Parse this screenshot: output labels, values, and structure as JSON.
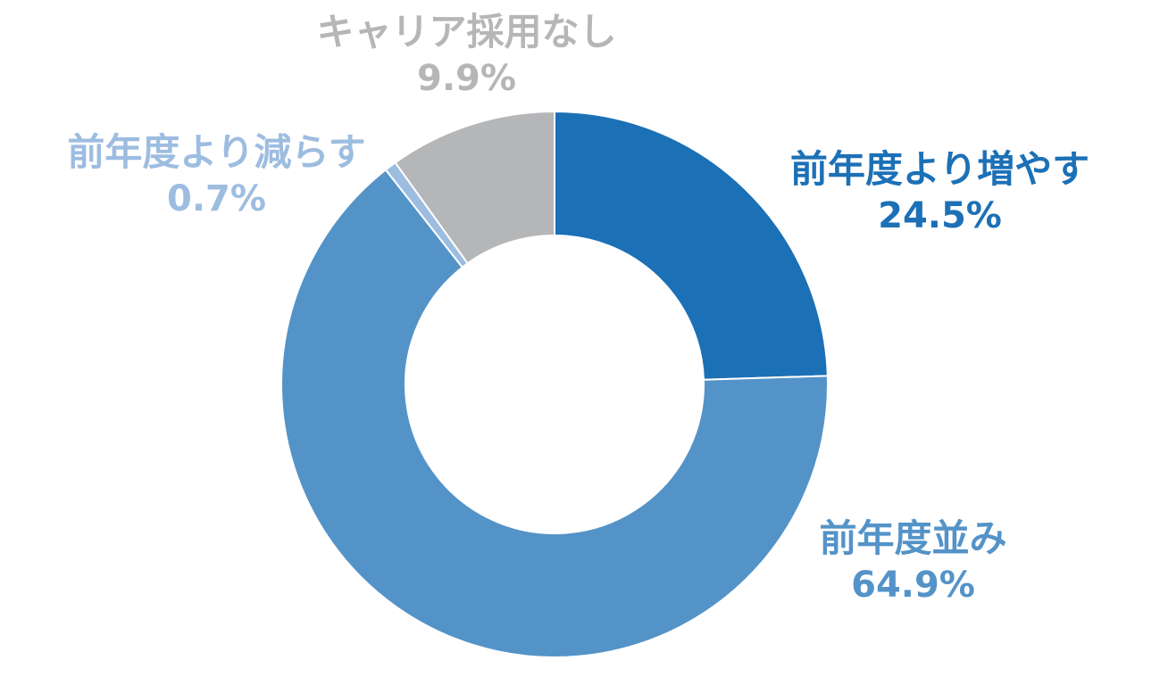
{
  "chart_data": {
    "type": "pie",
    "donut": true,
    "title": "",
    "slices": [
      {
        "label": "前年度より増やす",
        "value": 24.5,
        "value_label": "24.5%",
        "color": "#1c70b6"
      },
      {
        "label": "前年度並み",
        "value": 64.9,
        "value_label": "64.9%",
        "color": "#5493c8"
      },
      {
        "label": "前年度より減らす",
        "value": 0.7,
        "value_label": "0.7%",
        "color": "#9dbde0"
      },
      {
        "label": "キャリア採用なし",
        "value": 9.9,
        "value_label": "9.9%",
        "color": "#b5b6b8"
      }
    ],
    "start_angle": "12 o'clock",
    "direction": "clockwise",
    "legend": "none"
  }
}
